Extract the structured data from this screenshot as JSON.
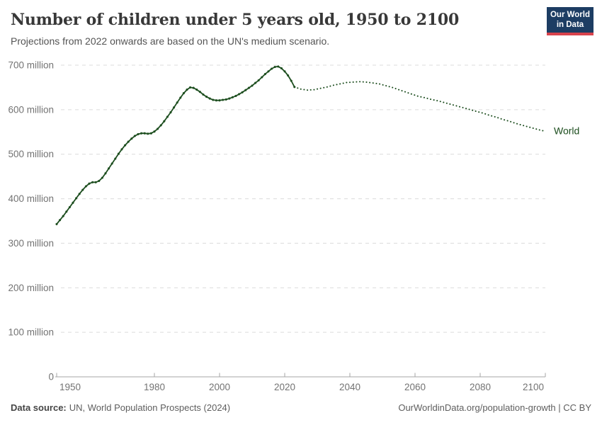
{
  "header": {
    "title": "Number of children under 5 years old, 1950 to 2100",
    "subtitle": "Projections from 2022 onwards are based on the UN's medium scenario.",
    "logo_line1": "Our World",
    "logo_line2": "in Data"
  },
  "colors": {
    "series_green": "#1d4e1f",
    "logo_navy": "#1d3d63",
    "logo_red": "#d8434c",
    "gridline": "#dcdcdc",
    "axis": "#a5a5a5",
    "tick_text": "#737373"
  },
  "chart_data": {
    "type": "line",
    "title": "Number of children under 5 years old, 1950 to 2100",
    "entity_label": "World",
    "values_unit": "million",
    "xlim": [
      1950,
      2100
    ],
    "ylim": [
      0,
      700
    ],
    "grid": "horizontal dashed",
    "x_tick_labels": [
      "1950",
      "1980",
      "2000",
      "2020",
      "2040",
      "2060",
      "2080",
      "2100"
    ],
    "y_ticks": [
      {
        "value": 700,
        "label": "700 million"
      },
      {
        "value": 600,
        "label": "600 million"
      },
      {
        "value": 500,
        "label": "500 million"
      },
      {
        "value": 400,
        "label": "400 million"
      },
      {
        "value": 300,
        "label": "300 million"
      },
      {
        "value": 200,
        "label": "200 million"
      },
      {
        "value": 100,
        "label": "100 million"
      },
      {
        "value": 0,
        "label": "0"
      }
    ],
    "series": [
      {
        "name": "World (estimates, 1950-2023)",
        "style": "solid-with-markers",
        "x_start": 1950,
        "x_step": 1,
        "values": [
          343,
          352,
          361,
          371,
          381,
          391,
          401,
          411,
          420,
          428,
          434,
          437,
          437,
          440,
          447,
          457,
          468,
          479,
          490,
          501,
          511,
          520,
          528,
          535,
          541,
          545,
          547,
          547,
          546,
          547,
          551,
          557,
          565,
          574,
          584,
          594,
          605,
          616,
          627,
          637,
          645,
          650,
          649,
          645,
          640,
          634,
          629,
          625,
          622,
          621,
          621,
          622,
          623,
          625,
          628,
          631,
          635,
          639,
          644,
          649,
          654,
          660,
          666,
          673,
          680,
          686,
          692,
          696,
          697,
          693,
          686,
          677,
          665,
          651
        ]
      },
      {
        "name": "World (UN medium projection, 2023-2100)",
        "style": "dotted",
        "points": [
          [
            2023,
            651
          ],
          [
            2025,
            646
          ],
          [
            2027,
            644
          ],
          [
            2029,
            645
          ],
          [
            2031,
            648
          ],
          [
            2033,
            651
          ],
          [
            2035,
            655
          ],
          [
            2037,
            658
          ],
          [
            2039,
            661
          ],
          [
            2041,
            662
          ],
          [
            2043,
            663
          ],
          [
            2045,
            662
          ],
          [
            2047,
            660
          ],
          [
            2049,
            658
          ],
          [
            2051,
            654
          ],
          [
            2053,
            650
          ],
          [
            2055,
            645
          ],
          [
            2057,
            640
          ],
          [
            2059,
            635
          ],
          [
            2061,
            630
          ],
          [
            2063,
            627
          ],
          [
            2065,
            623
          ],
          [
            2067,
            620
          ],
          [
            2069,
            616
          ],
          [
            2071,
            612
          ],
          [
            2073,
            608
          ],
          [
            2075,
            604
          ],
          [
            2077,
            600
          ],
          [
            2079,
            596
          ],
          [
            2081,
            592
          ],
          [
            2083,
            587
          ],
          [
            2085,
            583
          ],
          [
            2087,
            578
          ],
          [
            2089,
            574
          ],
          [
            2091,
            569
          ],
          [
            2093,
            565
          ],
          [
            2095,
            561
          ],
          [
            2097,
            557
          ],
          [
            2099,
            553
          ],
          [
            2100,
            552
          ]
        ]
      }
    ]
  },
  "footer": {
    "source_label": "Data source:",
    "source_value": "UN, World Population Prospects (2024)",
    "url_credit": "OurWorldinData.org/population-growth | CC BY"
  }
}
